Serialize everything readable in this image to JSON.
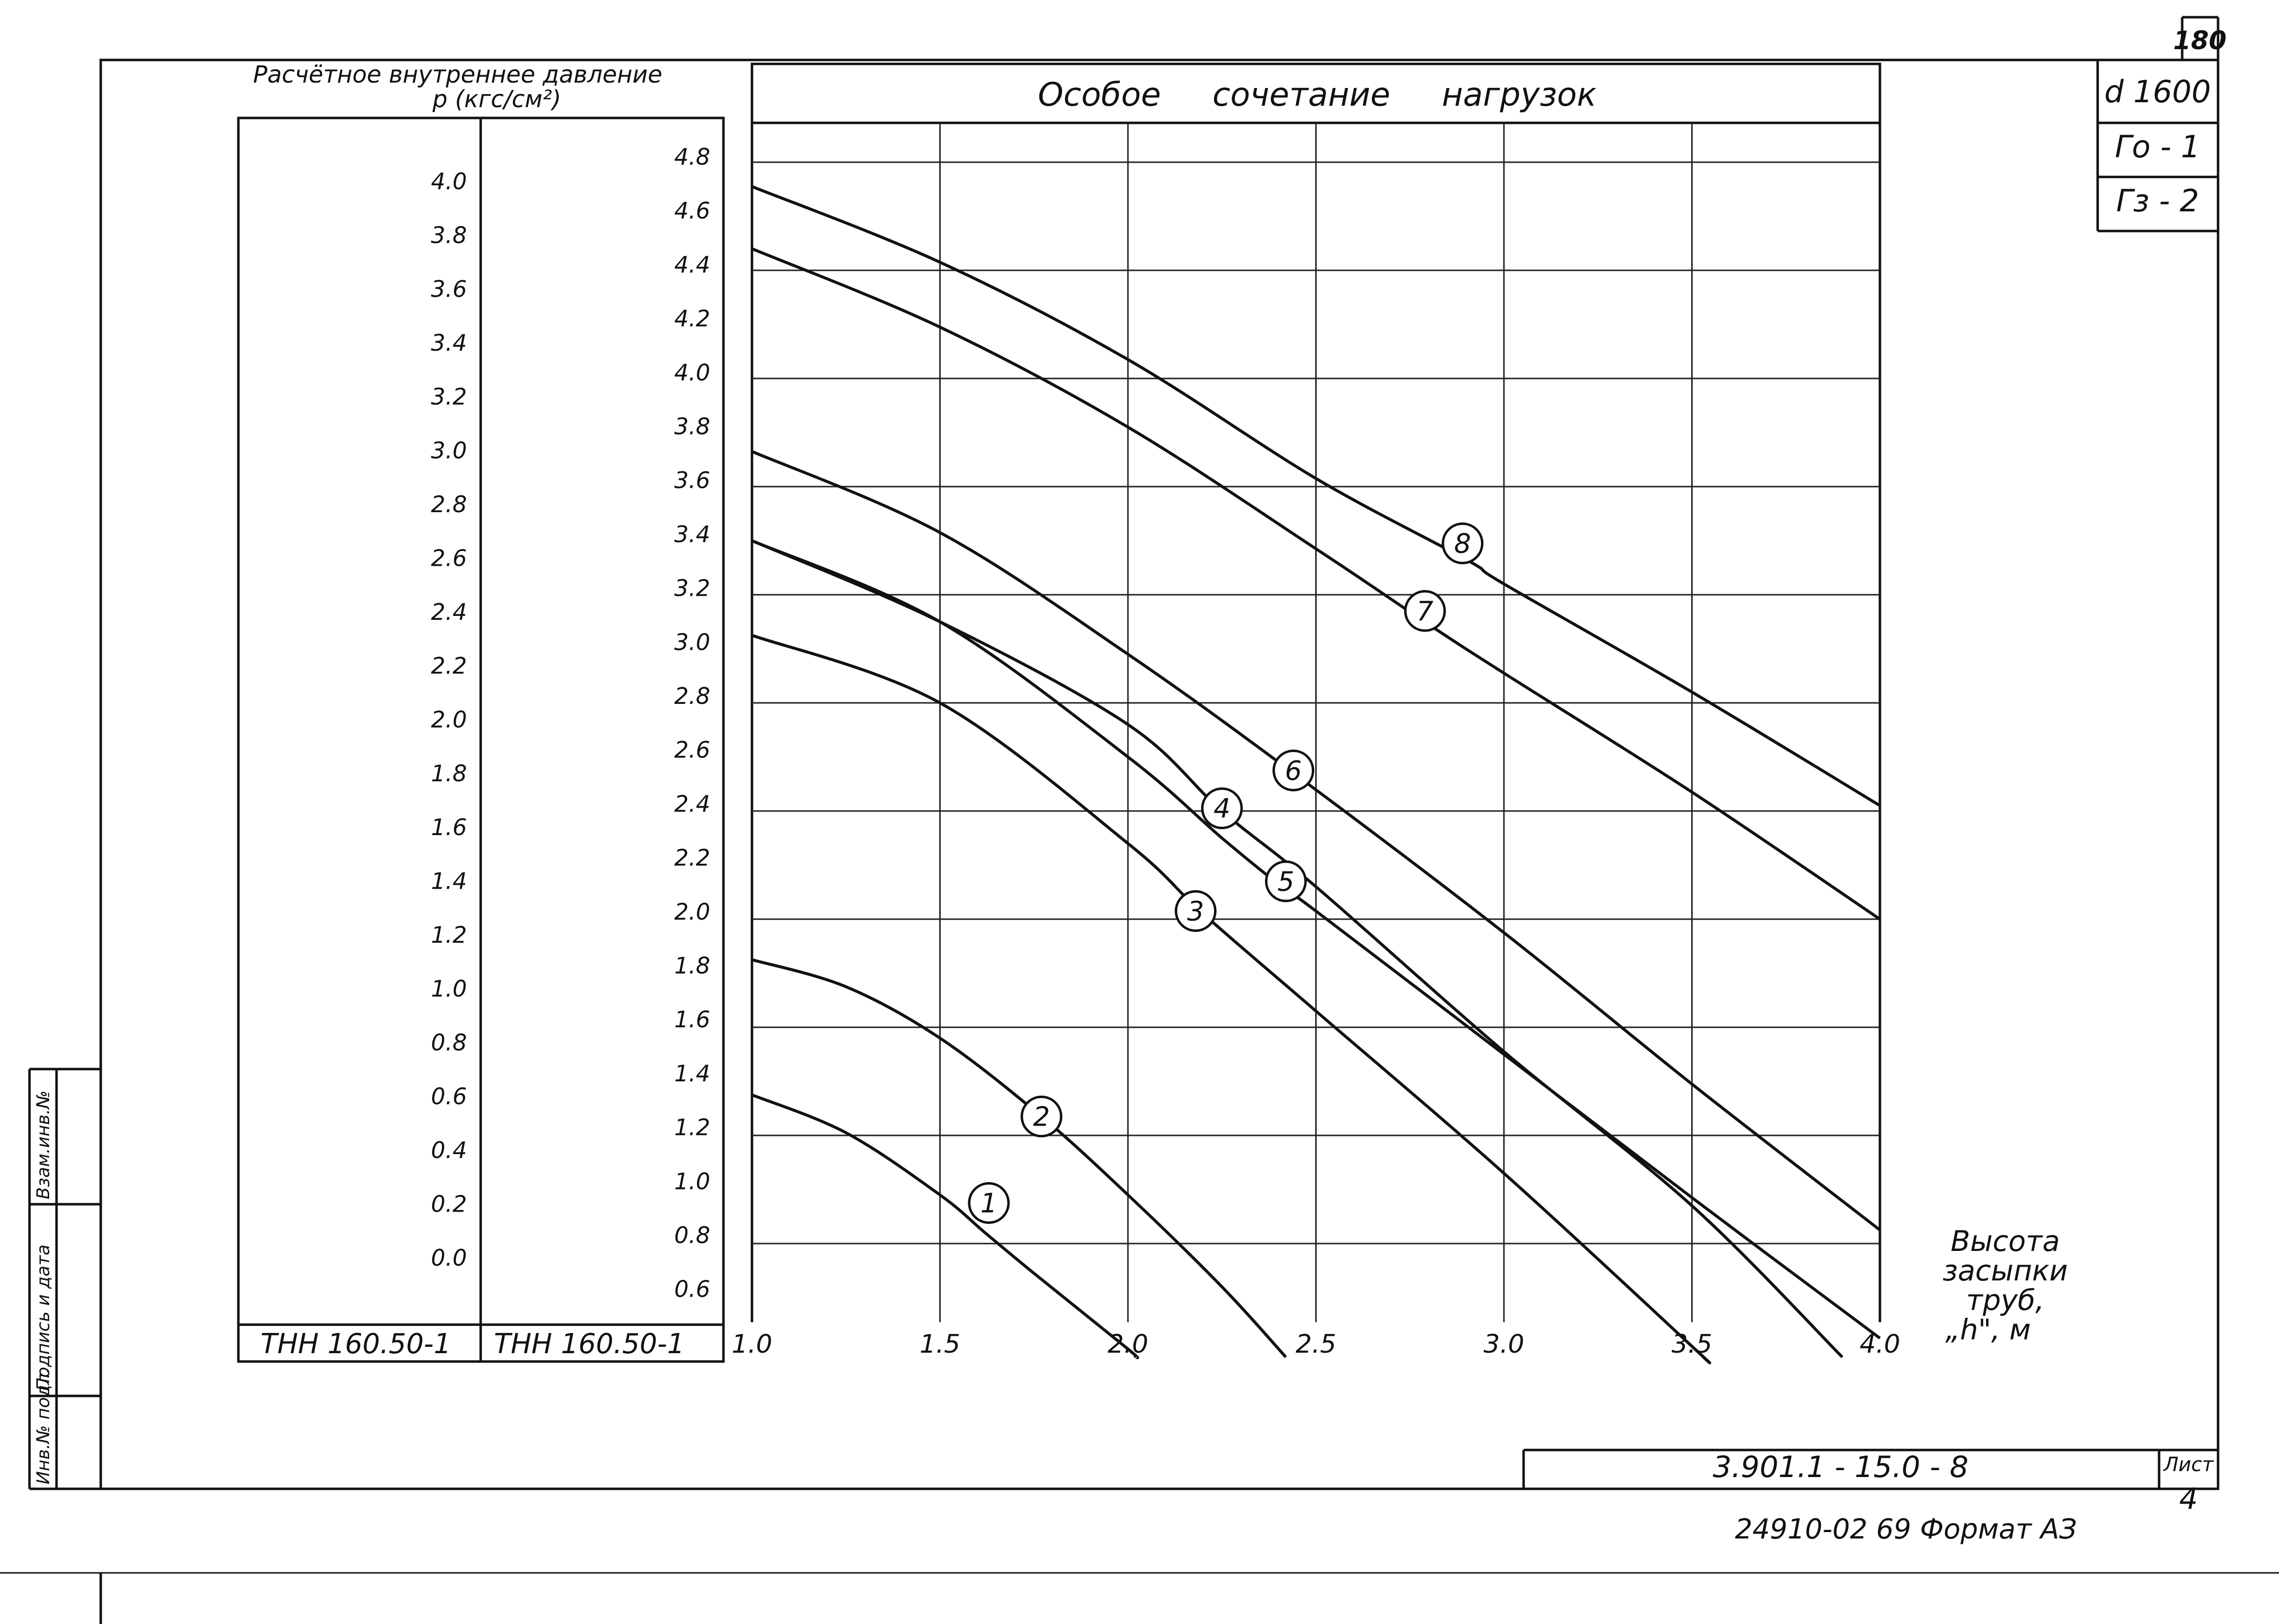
{
  "sheet": {
    "page_number": "180",
    "spec_lines": [
      "d 1600",
      "Го - 1",
      "Гз - 2"
    ],
    "drawing_code": "3.901.1 - 15.0 - 8",
    "list_label": "Лист",
    "list_number": "4",
    "footer_text": "24910-02  69  Формат АЗ",
    "side_stamp": [
      "Инв.№ подл.",
      "Подпись и дата",
      "Взам.инв.№"
    ]
  },
  "pressure_panel": {
    "title_line1": "Расчётное внутреннее давление",
    "title_line2": "p (кгс/см²)",
    "col1_ticks": [
      "4.0",
      "3.8",
      "3.6",
      "3.4",
      "3.2",
      "3.0",
      "2.8",
      "2.6",
      "2.4",
      "2.2",
      "2.0",
      "1.8",
      "1.6",
      "1.4",
      "1.2",
      "1.0",
      "0.8",
      "0.6",
      "0.4",
      "0.2",
      "0.0"
    ],
    "col2_ticks": [
      "4.8",
      "4.6",
      "4.4",
      "4.2",
      "4.0",
      "3.8",
      "3.6",
      "3.4",
      "3.2",
      "3.0",
      "2.8",
      "2.6",
      "2.4",
      "2.2",
      "2.0",
      "1.8",
      "1.6",
      "1.4",
      "1.2",
      "1.0",
      "0.8",
      "0.6"
    ],
    "col1_label": "ТНН 160.50-1",
    "col2_label": "ТНН  160.50-1"
  },
  "chart_data": {
    "type": "line",
    "title": "Особое     сочетание     нагрузок",
    "xlabel": "Высота засыпки труб, „h\", м",
    "xlabel_lines": [
      "Высота",
      "засыпки",
      "труб,",
      "„h\",  м"
    ],
    "x_ticks": [
      "1.0",
      "1.5",
      "2.0",
      "2.5",
      "3.0",
      "3.5",
      "4.0"
    ],
    "xlim": [
      1.0,
      4.0
    ],
    "ylim": [
      0.4,
      4.9
    ],
    "grid": true,
    "y_scale_note": "y values read on the right-hand pressure scale",
    "series": [
      {
        "name": "1",
        "x": [
          1.0,
          1.25,
          1.5,
          1.62,
          1.75,
          2.0,
          2.02
        ],
        "y": [
          1.35,
          1.21,
          0.98,
          0.84,
          0.69,
          0.41,
          0.38
        ]
      },
      {
        "name": "2",
        "x": [
          1.0,
          1.25,
          1.5,
          1.77,
          2.0,
          2.25,
          2.42
        ],
        "y": [
          1.85,
          1.75,
          1.56,
          1.27,
          0.98,
          0.64,
          0.38
        ]
      },
      {
        "name": "3",
        "x": [
          1.0,
          1.5,
          2.0,
          2.2,
          2.5,
          3.0,
          3.5,
          3.53
        ],
        "y": [
          3.05,
          2.8,
          2.28,
          2.02,
          1.66,
          1.06,
          0.42,
          0.38
        ]
      },
      {
        "name": "4",
        "x": [
          1.0,
          1.5,
          2.0,
          2.25,
          2.5,
          3.0,
          3.5,
          3.9
        ],
        "y": [
          3.4,
          3.1,
          2.72,
          2.4,
          2.12,
          1.51,
          0.94,
          0.38
        ]
      },
      {
        "name": "5",
        "x": [
          1.0,
          1.5,
          2.0,
          2.25,
          2.4,
          2.5,
          3.0,
          3.5,
          4.0
        ],
        "y": [
          3.4,
          3.1,
          2.6,
          2.3,
          2.13,
          2.03,
          1.5,
          0.97,
          0.45
        ]
      },
      {
        "name": "6",
        "x": [
          1.0,
          1.5,
          2.0,
          2.45,
          3.0,
          3.5,
          4.0
        ],
        "y": [
          3.73,
          3.43,
          2.98,
          2.53,
          1.95,
          1.39,
          0.85
        ]
      },
      {
        "name": "7",
        "x": [
          1.0,
          1.5,
          2.0,
          2.5,
          2.8,
          3.0,
          3.5,
          4.0
        ],
        "y": [
          4.48,
          4.19,
          3.82,
          3.37,
          3.09,
          2.91,
          2.47,
          2.0
        ]
      },
      {
        "name": "8",
        "x": [
          1.0,
          1.5,
          2.0,
          2.5,
          2.9,
          3.0,
          3.5,
          4.0
        ],
        "y": [
          4.71,
          4.43,
          4.07,
          3.63,
          3.33,
          3.24,
          2.84,
          2.42
        ]
      }
    ],
    "marker_positions": [
      {
        "label": "1",
        "x": 1.63,
        "y": 0.95
      },
      {
        "label": "2",
        "x": 1.77,
        "y": 1.27
      },
      {
        "label": "3",
        "x": 2.18,
        "y": 2.03
      },
      {
        "label": "4",
        "x": 2.25,
        "y": 2.41
      },
      {
        "label": "5",
        "x": 2.42,
        "y": 2.14
      },
      {
        "label": "6",
        "x": 2.44,
        "y": 2.55
      },
      {
        "label": "7",
        "x": 2.79,
        "y": 3.14
      },
      {
        "label": "8",
        "x": 2.89,
        "y": 3.39
      }
    ]
  }
}
